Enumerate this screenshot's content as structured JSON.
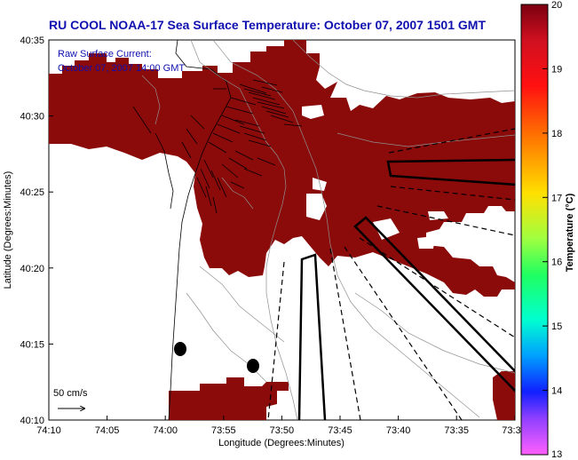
{
  "header": {
    "title": "RU COOL  NOAA-17  Sea Surface Temperature:  October 07, 2007 1501 GMT"
  },
  "overlay": {
    "current_label_line1": "Raw Surface Current:",
    "current_label_line2": "October 07, 2007 14:00 GMT",
    "scale_label": "50 cm/s"
  },
  "axes": {
    "x_label": "Longitude (Degrees:Minutes)",
    "y_label": "Latitude (Degrees:Minutes)",
    "x_ticks": [
      "74:10",
      "74:05",
      "74:00",
      "73:55",
      "73:50",
      "73:45",
      "73:40",
      "73:35",
      "73:3"
    ],
    "y_ticks": [
      "40:35",
      "40:30",
      "40:25",
      "40:20",
      "40:15",
      "40:10"
    ]
  },
  "colorbar": {
    "label": "Temperature (°C)",
    "ticks": [
      "20",
      "19",
      "18",
      "17",
      "16",
      "15",
      "14",
      "13"
    ],
    "max": 20,
    "min": 13
  },
  "colors": {
    "sst_fill": "#8b0a0a",
    "title_color": "#1010b0",
    "land": "#ffffff"
  },
  "markers": {
    "count": 2
  }
}
